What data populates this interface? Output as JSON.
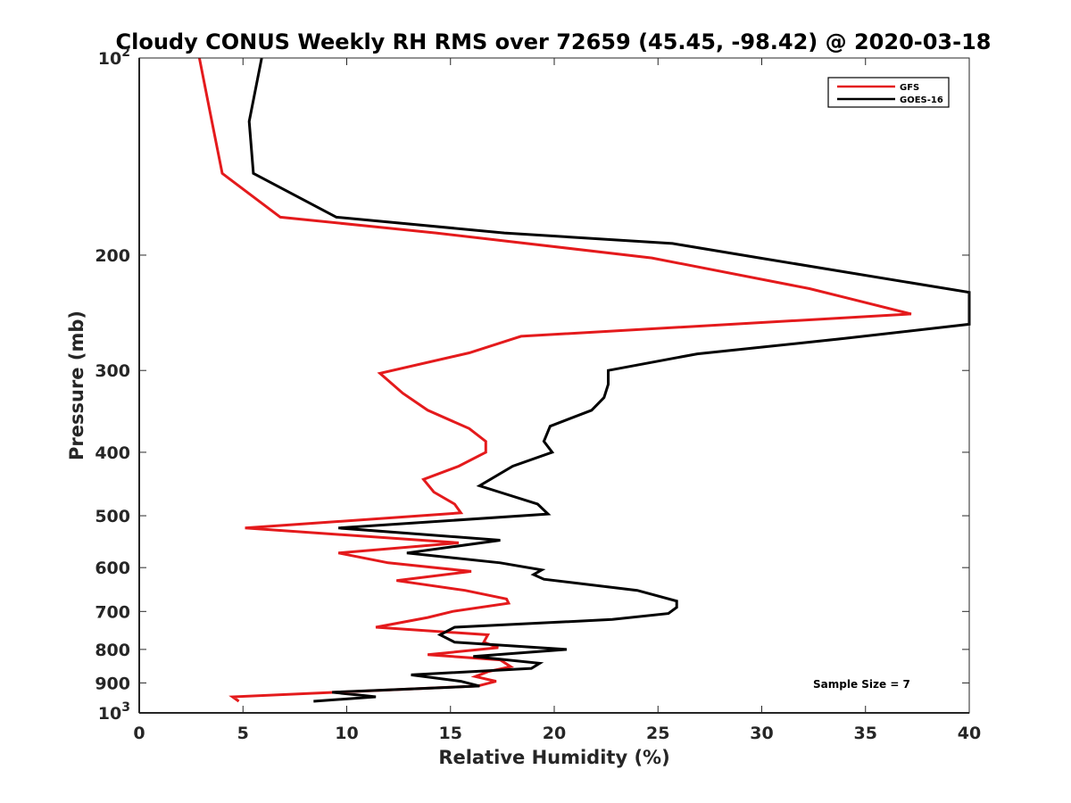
{
  "chart_data": {
    "type": "line",
    "title": "Cloudy CONUS Weekly RH RMS over 72659 (45.45, -98.42) @ 2020-03-18",
    "xlabel": "Relative Humidity (%)",
    "ylabel": "Pressure (mb)",
    "xlim": [
      0,
      40
    ],
    "ylim": [
      100,
      1000
    ],
    "y_scale": "log",
    "y_reversed": true,
    "x_ticks": [
      0,
      5,
      10,
      15,
      20,
      25,
      30,
      35,
      40
    ],
    "y_ticks": [
      {
        "value": 100,
        "label": "10",
        "sup": "2"
      },
      {
        "value": 200,
        "label": "200"
      },
      {
        "value": 300,
        "label": "300"
      },
      {
        "value": 400,
        "label": "400"
      },
      {
        "value": 500,
        "label": "500"
      },
      {
        "value": 600,
        "label": "600"
      },
      {
        "value": 700,
        "label": "700"
      },
      {
        "value": 800,
        "label": "800"
      },
      {
        "value": 900,
        "label": "900"
      },
      {
        "value": 1000,
        "label": "10",
        "sup": "3"
      }
    ],
    "grid": false,
    "legend_position": "top-right",
    "annotation": "Sample Size = 7",
    "series": [
      {
        "name": "GFS",
        "color": "#e41a1c",
        "points": [
          [
            2.9,
            100
          ],
          [
            3.5,
            125
          ],
          [
            4.0,
            150
          ],
          [
            6.8,
            175
          ],
          [
            14.3,
            185
          ],
          [
            24.7,
            202
          ],
          [
            32.3,
            225
          ],
          [
            34.0,
            232
          ],
          [
            37.2,
            246
          ],
          [
            18.4,
            266
          ],
          [
            15.9,
            282
          ],
          [
            11.6,
            303
          ],
          [
            12.7,
            325
          ],
          [
            13.9,
            345
          ],
          [
            15.9,
            368
          ],
          [
            16.7,
            385
          ],
          [
            16.7,
            400
          ],
          [
            15.4,
            420
          ],
          [
            13.7,
            440
          ],
          [
            14.2,
            460
          ],
          [
            15.2,
            480
          ],
          [
            15.5,
            495
          ],
          [
            5.1,
            522
          ],
          [
            15.4,
            550
          ],
          [
            9.6,
            570
          ],
          [
            12.0,
            590
          ],
          [
            16.0,
            608
          ],
          [
            12.4,
            628
          ],
          [
            15.7,
            650
          ],
          [
            17.7,
            670
          ],
          [
            17.8,
            680
          ],
          [
            15.1,
            700
          ],
          [
            13.9,
            715
          ],
          [
            11.4,
            740
          ],
          [
            16.8,
            760
          ],
          [
            16.6,
            780
          ],
          [
            17.3,
            795
          ],
          [
            13.9,
            815
          ],
          [
            17.4,
            830
          ],
          [
            17.9,
            850
          ],
          [
            16.8,
            865
          ],
          [
            16.2,
            880
          ],
          [
            17.2,
            895
          ],
          [
            16.3,
            910
          ],
          [
            4.5,
            945
          ],
          [
            4.8,
            960
          ]
        ]
      },
      {
        "name": "GOES-16",
        "color": "#000000",
        "points": [
          [
            5.9,
            100
          ],
          [
            5.3,
            125
          ],
          [
            5.5,
            150
          ],
          [
            9.5,
            175
          ],
          [
            17.6,
            185
          ],
          [
            25.7,
            192
          ],
          [
            29.9,
            202
          ],
          [
            40.0,
            228
          ],
          [
            40.0,
            255
          ],
          [
            34.0,
            268
          ],
          [
            26.9,
            283
          ],
          [
            22.6,
            300
          ],
          [
            22.6,
            315
          ],
          [
            22.4,
            330
          ],
          [
            21.8,
            345
          ],
          [
            19.8,
            365
          ],
          [
            19.5,
            385
          ],
          [
            19.9,
            400
          ],
          [
            18.0,
            420
          ],
          [
            16.4,
            450
          ],
          [
            19.2,
            480
          ],
          [
            19.7,
            497
          ],
          [
            9.6,
            522
          ],
          [
            17.4,
            545
          ],
          [
            12.9,
            570
          ],
          [
            17.4,
            590
          ],
          [
            19.4,
            605
          ],
          [
            19.0,
            615
          ],
          [
            19.5,
            625
          ],
          [
            24.0,
            650
          ],
          [
            25.9,
            675
          ],
          [
            25.9,
            690
          ],
          [
            25.5,
            705
          ],
          [
            22.8,
            720
          ],
          [
            15.2,
            740
          ],
          [
            14.5,
            760
          ],
          [
            15.2,
            780
          ],
          [
            20.6,
            800
          ],
          [
            16.1,
            820
          ],
          [
            19.3,
            840
          ],
          [
            18.9,
            855
          ],
          [
            13.1,
            875
          ],
          [
            15.5,
            895
          ],
          [
            16.4,
            910
          ],
          [
            9.3,
            930
          ],
          [
            11.4,
            945
          ],
          [
            8.4,
            960
          ]
        ]
      }
    ]
  }
}
